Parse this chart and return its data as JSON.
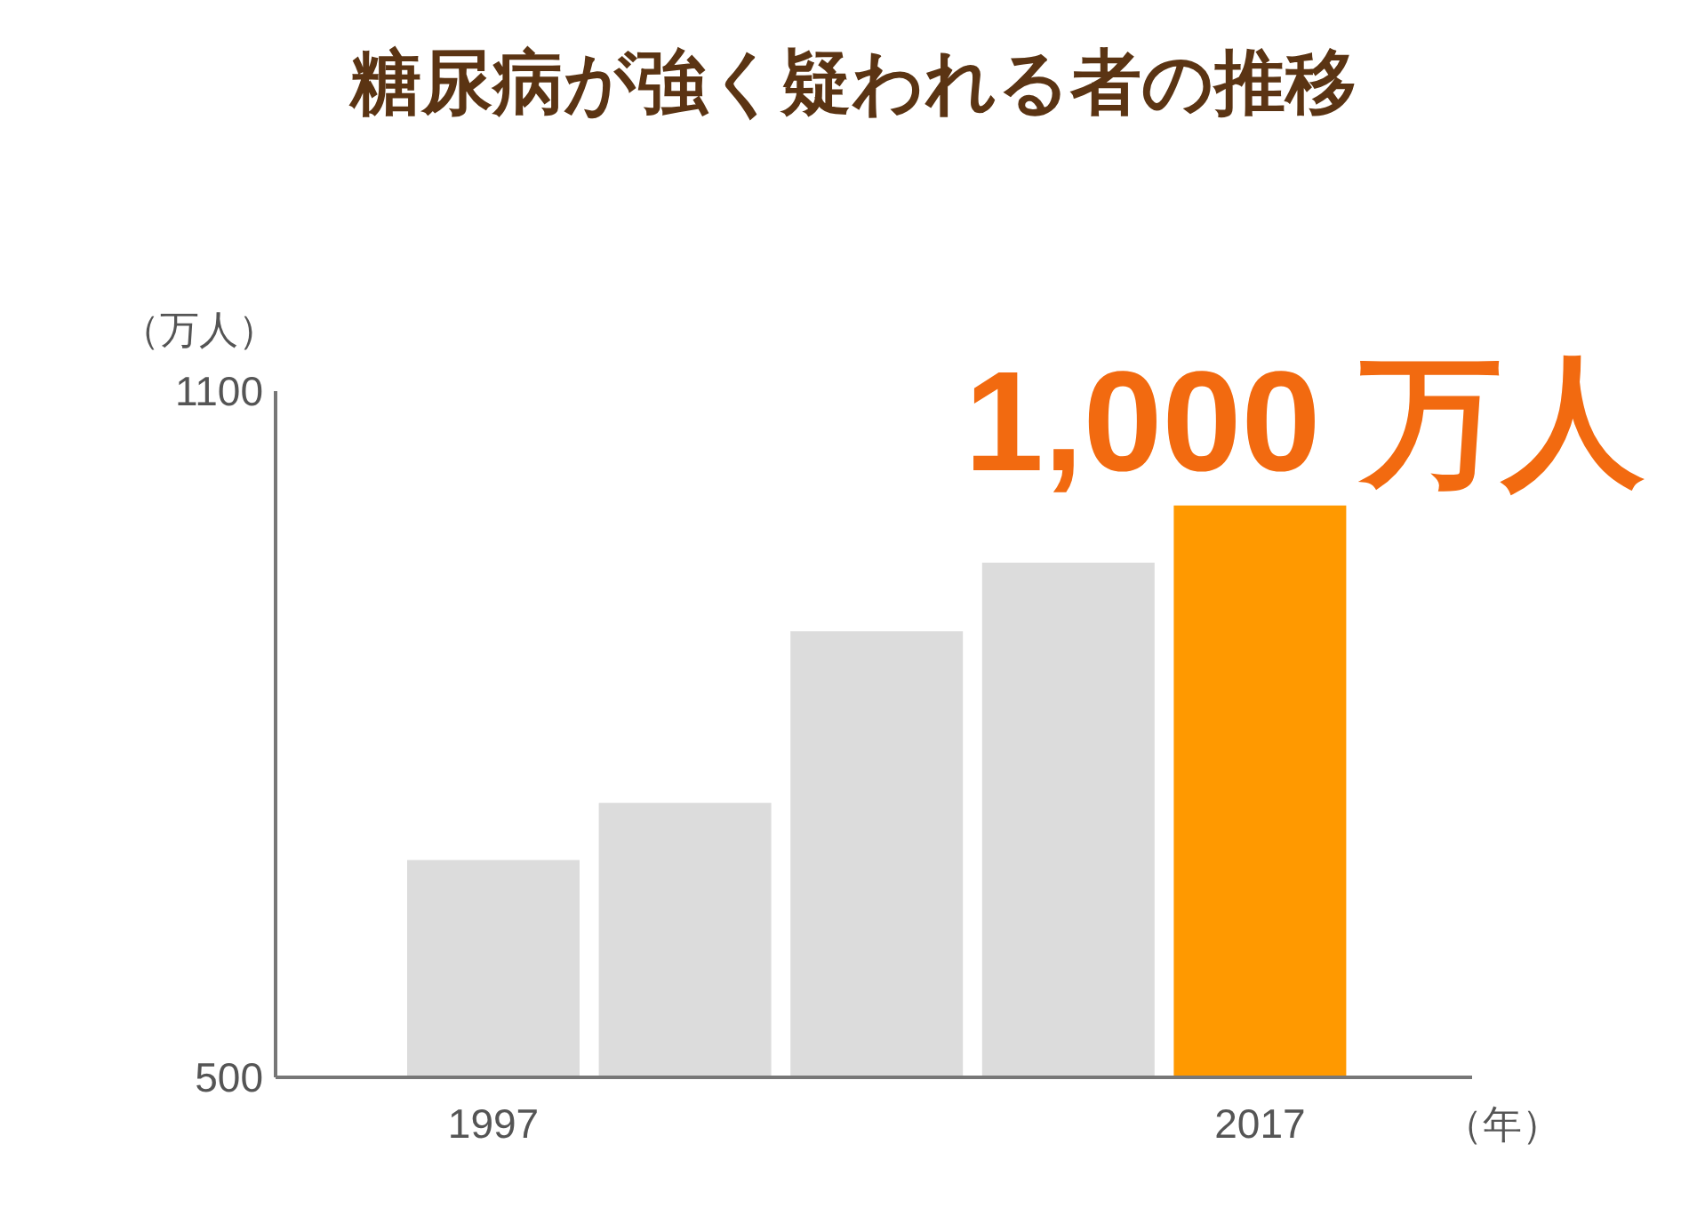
{
  "chart_data": {
    "type": "bar",
    "title": "糖尿病が強く疑われる者の推移",
    "ylabel": "（万人）",
    "xlabel": "（年）",
    "categories": [
      "1997",
      null,
      null,
      null,
      "2017"
    ],
    "values": [
      690,
      740,
      890,
      950,
      1000
    ],
    "colors": [
      "#dcdcdc",
      "#dcdcdc",
      "#dcdcdc",
      "#dcdcdc",
      "#ff9900"
    ],
    "value_labels": [
      null,
      null,
      null,
      null,
      "1,000 万人"
    ],
    "ylim": [
      500,
      1100
    ],
    "yticks": [
      500,
      1100
    ]
  }
}
